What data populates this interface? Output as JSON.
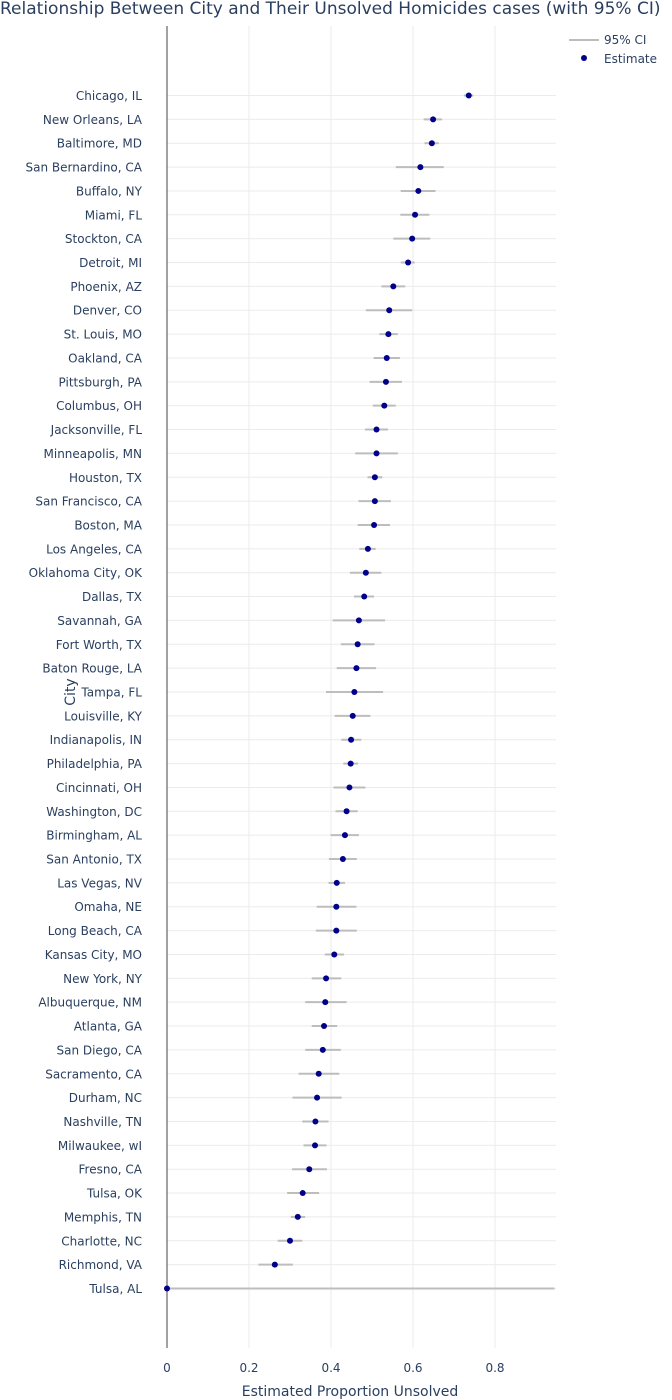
{
  "chart_data": {
    "type": "scatter",
    "title": "Relationship Between City and Their Unsolved Homicides cases (with 95% CI)",
    "xlabel": "Estimated Proportion Unsolved",
    "ylabel": "City",
    "xlim": [
      -0.02,
      0.95
    ],
    "xticks": [
      "0",
      "0.2",
      "0.4",
      "0.6",
      "0.8"
    ],
    "grid": true,
    "legend_position": "top-right",
    "legend": [
      {
        "name": "95% CI",
        "symbol": "line",
        "color": "#bdbdbd"
      },
      {
        "name": "Estimate",
        "symbol": "dot",
        "color": "#00008b"
      }
    ],
    "categories": [
      "Chicago, IL",
      "New Orleans, LA",
      "Baltimore, MD",
      "San Bernardino, CA",
      "Buffalo, NY",
      "Miami, FL",
      "Stockton, CA",
      "Detroit, MI",
      "Phoenix, AZ",
      "Denver, CO",
      "St. Louis, MO",
      "Oakland, CA",
      "Pittsburgh, PA",
      "Columbus, OH",
      "Jacksonville, FL",
      "Minneapolis, MN",
      "Houston, TX",
      "San Francisco, CA",
      "Boston, MA",
      "Los Angeles, CA",
      "Oklahoma City, OK",
      "Dallas, TX",
      "Savannah, GA",
      "Fort Worth, TX",
      "Baton Rouge, LA",
      "Tampa, FL",
      "Louisville, KY",
      "Indianapolis, IN",
      "Philadelphia, PA",
      "Cincinnati, OH",
      "Washington, DC",
      "Birmingham, AL",
      "San Antonio, TX",
      "Las Vegas, NV",
      "Omaha, NE",
      "Long Beach, CA",
      "Kansas City, MO",
      "New York, NY",
      "Albuquerque, NM",
      "Atlanta, GA",
      "San Diego, CA",
      "Sacramento, CA",
      "Durham, NC",
      "Nashville, TN",
      "Milwaukee, wI",
      "Fresno, CA",
      "Tulsa, OK",
      "Memphis, TN",
      "Charlotte, NC",
      "Richmond, VA",
      "Tulsa, AL"
    ],
    "estimate": [
      0.736,
      0.649,
      0.646,
      0.618,
      0.613,
      0.605,
      0.598,
      0.588,
      0.552,
      0.542,
      0.54,
      0.536,
      0.534,
      0.53,
      0.511,
      0.511,
      0.507,
      0.507,
      0.505,
      0.49,
      0.485,
      0.481,
      0.468,
      0.465,
      0.462,
      0.457,
      0.453,
      0.449,
      0.448,
      0.445,
      0.438,
      0.434,
      0.429,
      0.414,
      0.413,
      0.413,
      0.408,
      0.388,
      0.386,
      0.383,
      0.38,
      0.37,
      0.366,
      0.362,
      0.361,
      0.347,
      0.331,
      0.319,
      0.3,
      0.263,
      0.0
    ],
    "ci_lower": [
      0.724,
      0.626,
      0.628,
      0.558,
      0.57,
      0.569,
      0.552,
      0.57,
      0.523,
      0.485,
      0.518,
      0.504,
      0.494,
      0.502,
      0.483,
      0.459,
      0.489,
      0.467,
      0.465,
      0.469,
      0.446,
      0.456,
      0.404,
      0.424,
      0.414,
      0.388,
      0.409,
      0.425,
      0.43,
      0.406,
      0.411,
      0.399,
      0.395,
      0.394,
      0.365,
      0.363,
      0.385,
      0.353,
      0.337,
      0.353,
      0.337,
      0.321,
      0.306,
      0.33,
      0.333,
      0.305,
      0.293,
      0.302,
      0.27,
      0.223,
      0.0
    ],
    "ci_upper": [
      0.747,
      0.671,
      0.663,
      0.675,
      0.655,
      0.64,
      0.642,
      0.604,
      0.581,
      0.598,
      0.563,
      0.568,
      0.573,
      0.558,
      0.539,
      0.563,
      0.525,
      0.546,
      0.544,
      0.509,
      0.523,
      0.505,
      0.532,
      0.506,
      0.51,
      0.527,
      0.496,
      0.474,
      0.466,
      0.484,
      0.465,
      0.468,
      0.463,
      0.434,
      0.462,
      0.463,
      0.432,
      0.425,
      0.438,
      0.415,
      0.424,
      0.42,
      0.426,
      0.394,
      0.389,
      0.39,
      0.371,
      0.337,
      0.33,
      0.307,
      0.945
    ]
  }
}
